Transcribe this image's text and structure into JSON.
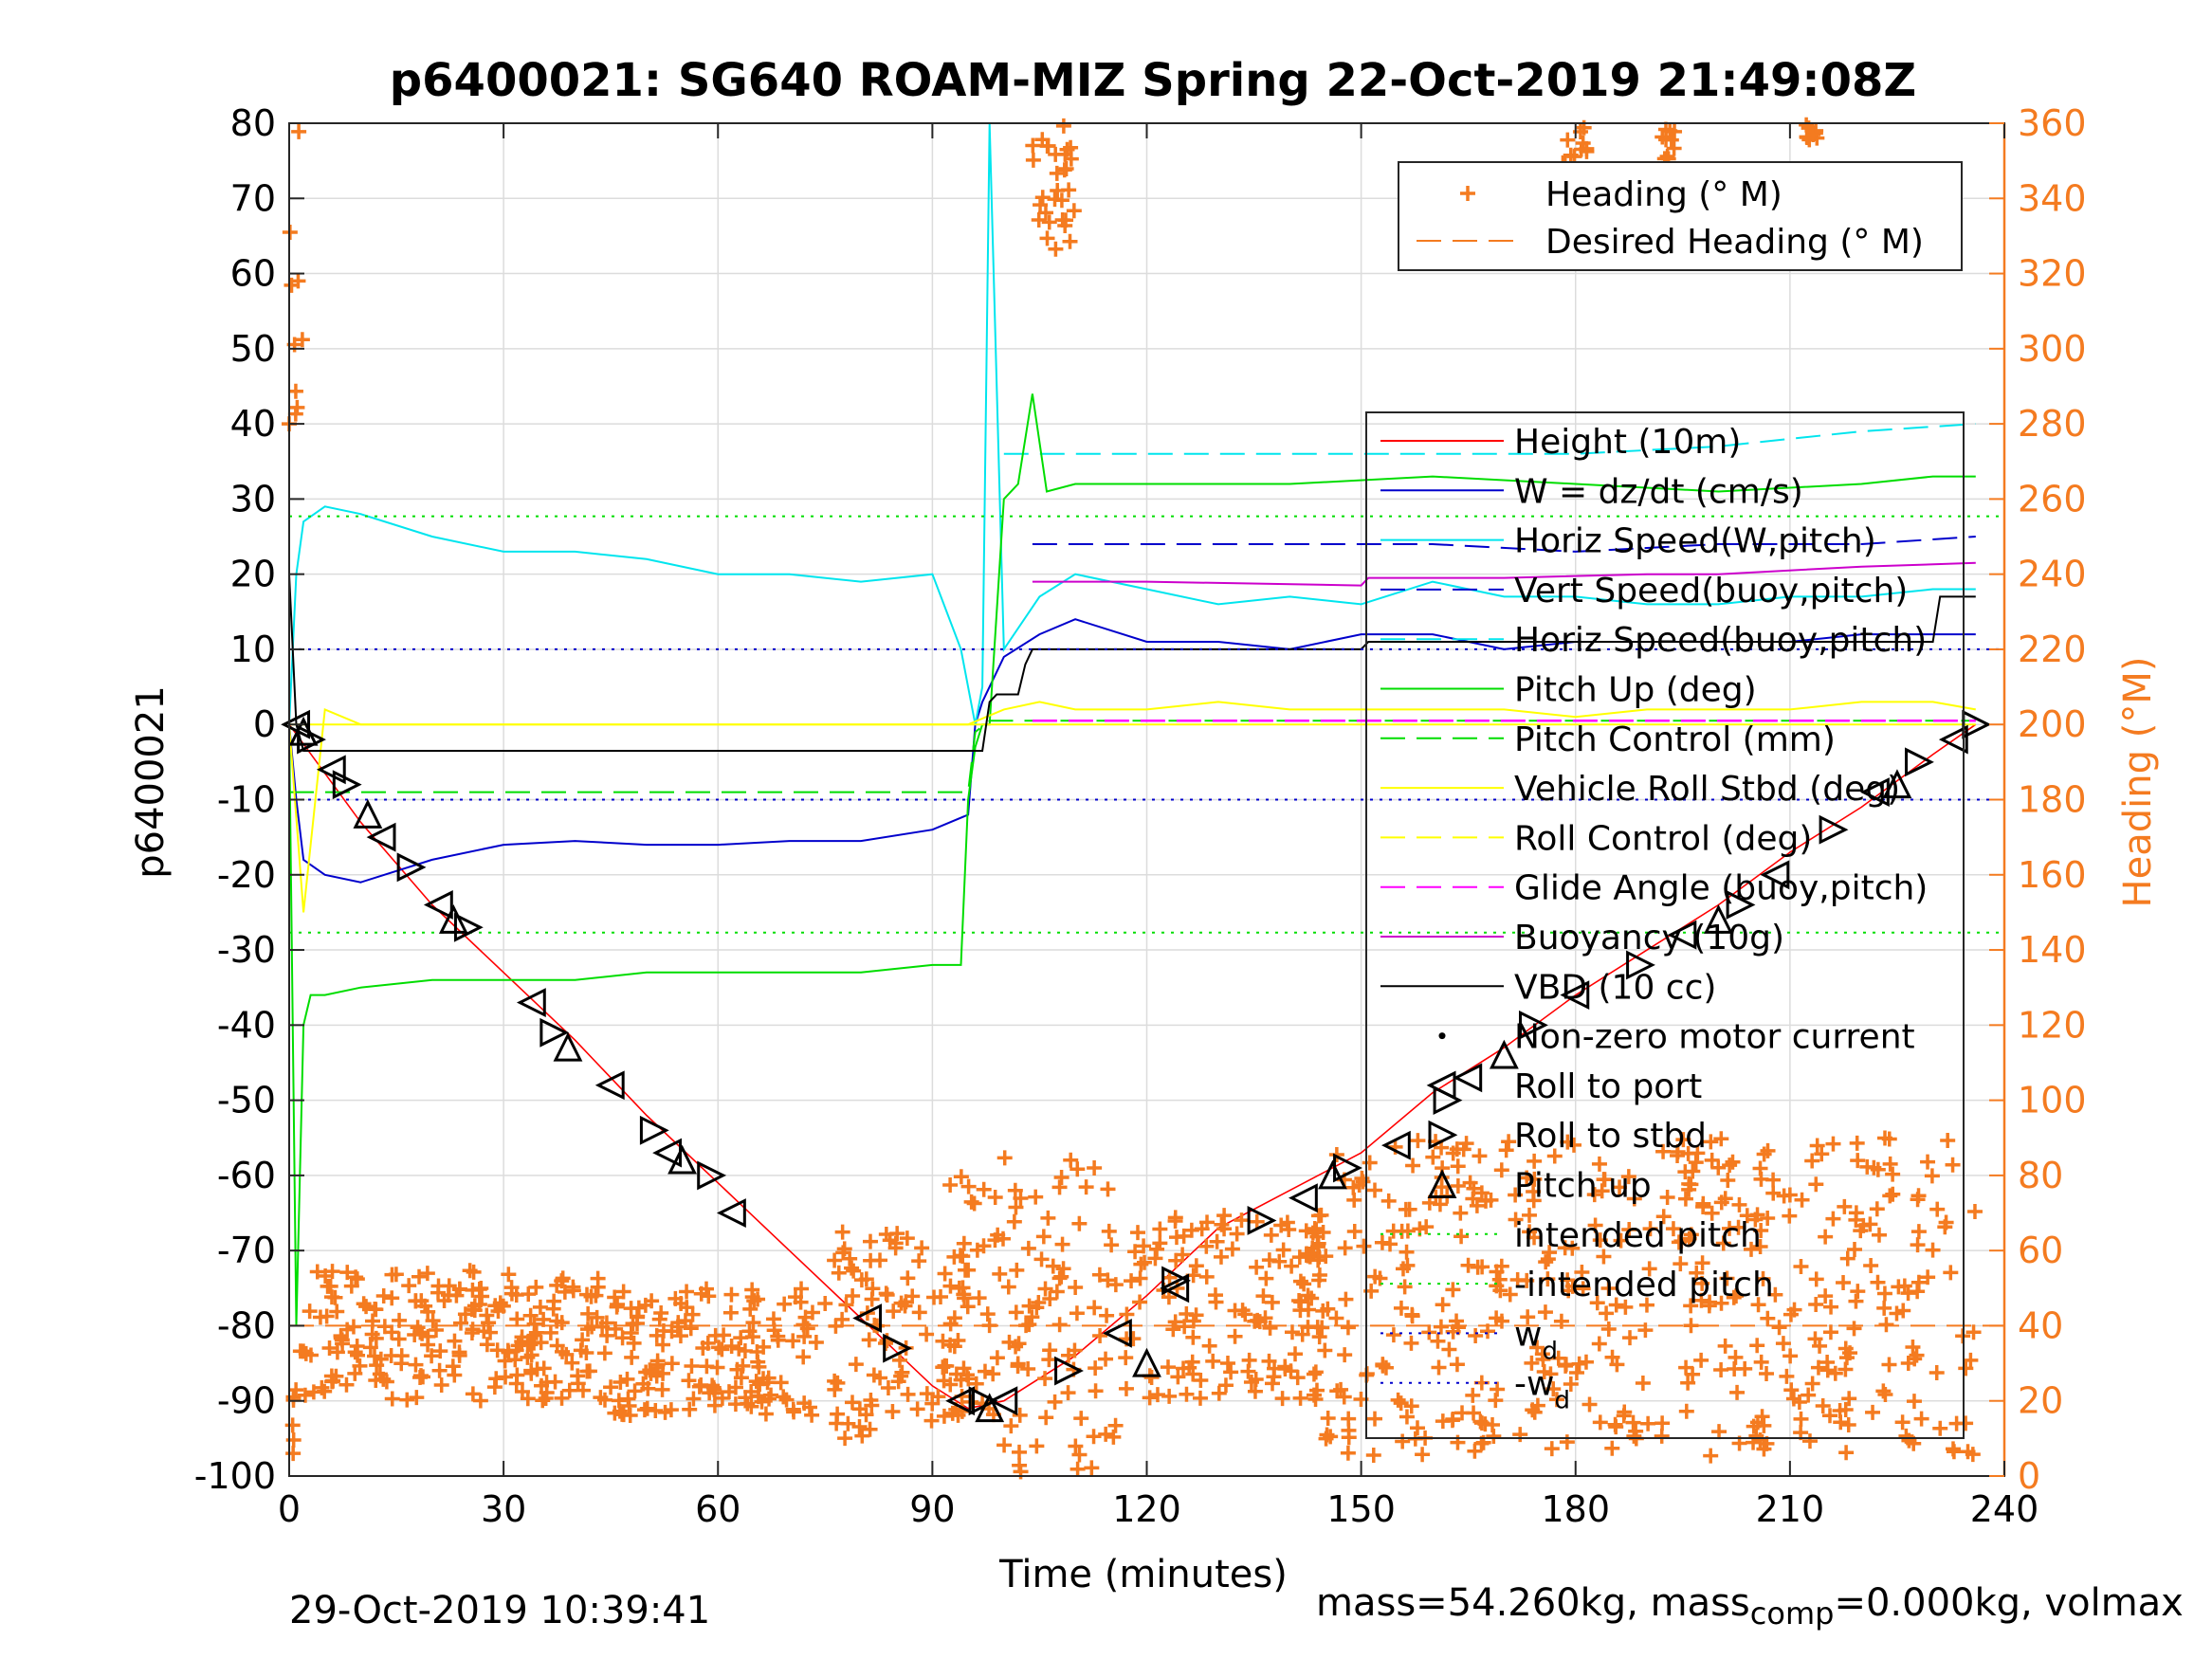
{
  "chart_data": {
    "type": "line",
    "title": "p6400021: SG640 ROAM-MIZ Spring 22-Oct-2019 21:49:08Z",
    "xlabel": "Time (minutes)",
    "ylabel_left": "p6400021",
    "ylabel_right": "Heading (°M)",
    "xlim": [
      0,
      240
    ],
    "ylim_left": [
      -100,
      80
    ],
    "ylim_right": [
      0,
      360
    ],
    "xticks": [
      0,
      30,
      60,
      90,
      120,
      150,
      180,
      210,
      240
    ],
    "xtick_labels": [
      "0",
      "30",
      "60",
      "90",
      "120",
      "150",
      "180",
      "210",
      "240"
    ],
    "yticks_left": [
      -100,
      -90,
      -80,
      -70,
      -60,
      -50,
      -40,
      -30,
      -20,
      -10,
      0,
      10,
      20,
      30,
      40,
      50,
      60,
      70,
      80
    ],
    "ytick_labels_left": [
      "-100",
      "-90",
      "-80",
      "-70",
      "-60",
      "-50",
      "-40",
      "-30",
      "-20",
      "-10",
      "0",
      "10",
      "20",
      "30",
      "40",
      "50",
      "60",
      "70",
      "80"
    ],
    "yticks_right": [
      0,
      20,
      40,
      60,
      80,
      100,
      120,
      140,
      160,
      180,
      200,
      220,
      240,
      260,
      280,
      300,
      320,
      340,
      360
    ],
    "ytick_labels_right": [
      "0",
      "20",
      "40",
      "60",
      "80",
      "100",
      "120",
      "140",
      "160",
      "180",
      "200",
      "220",
      "240",
      "260",
      "280",
      "300",
      "320",
      "340",
      "360"
    ],
    "grid": true,
    "legend_top": [
      {
        "label": "Heading (° M)",
        "color": "#f47b20",
        "style": "marker-plus"
      },
      {
        "label": "Desired Heading (° M)",
        "color": "#f47b20",
        "style": "dashed"
      }
    ],
    "legend_main": [
      {
        "label": "Height (10m)",
        "color": "#ff0000",
        "style": "solid"
      },
      {
        "label": "W = dz/dt (cm/s)",
        "color": "#0000cc",
        "style": "solid"
      },
      {
        "label": "Horiz Speed(W,pitch)",
        "color": "#00e5ee",
        "style": "solid"
      },
      {
        "label": "Vert Speed(buoy,pitch)",
        "color": "#0000cc",
        "style": "dashed"
      },
      {
        "label": "Horiz Speed(buoy,pitch)",
        "color": "#00e5ee",
        "style": "dashed"
      },
      {
        "label": "Pitch Up (deg)",
        "color": "#00dd00",
        "style": "solid"
      },
      {
        "label": "Pitch Control (mm)",
        "color": "#00dd00",
        "style": "dashed"
      },
      {
        "label": "Vehicle Roll Stbd (deg)",
        "color": "#ffff00",
        "style": "solid"
      },
      {
        "label": "Roll Control (deg)",
        "color": "#ffff00",
        "style": "dashed"
      },
      {
        "label": "Glide Angle (buoy,pitch)",
        "color": "#ff00ff",
        "style": "dashed"
      },
      {
        "label": "Buoyancy (10g)",
        "color": "#cc00cc",
        "style": "solid"
      },
      {
        "label": "VBD (10 cc)",
        "color": "#000000",
        "style": "solid"
      },
      {
        "label": "Non-zero motor current",
        "color": "#000000",
        "style": "dot"
      },
      {
        "label": "Roll to port",
        "color": "#000000",
        "style": "tri-left"
      },
      {
        "label": "Roll to stbd",
        "color": "#000000",
        "style": "tri-right"
      },
      {
        "label": "Pitch up",
        "color": "#000000",
        "style": "tri-up"
      },
      {
        "label": "intended pitch",
        "color": "#00dd00",
        "style": "dotted"
      },
      {
        "label": "-intended pitch",
        "color": "#00dd00",
        "style": "dotted"
      },
      {
        "label": "w_d",
        "color": "#0000cc",
        "style": "dotted"
      },
      {
        "label": "-w_d",
        "color": "#0000cc",
        "style": "dotted"
      }
    ],
    "series": [
      {
        "name": "Height (10m)",
        "axis": "left",
        "color": "#ff0000",
        "x": [
          0,
          10,
          20,
          30,
          40,
          50,
          60,
          70,
          80,
          90,
          95,
          100,
          110,
          120,
          130,
          140,
          150,
          160,
          170,
          180,
          190,
          200,
          210,
          220,
          230,
          236
        ],
        "y": [
          0,
          -13,
          -24,
          -33,
          -42,
          -52,
          -61,
          -70,
          -79,
          -88,
          -91,
          -90,
          -84,
          -76,
          -67,
          -62,
          -57,
          -49,
          -43,
          -36,
          -30,
          -24,
          -17,
          -11,
          -4,
          0
        ]
      },
      {
        "name": "W = dz/dt (cm/s)",
        "axis": "left",
        "color": "#0000cc",
        "x": [
          0,
          1,
          2,
          5,
          10,
          20,
          30,
          40,
          50,
          60,
          70,
          80,
          90,
          95,
          96,
          97,
          100,
          105,
          110,
          120,
          130,
          140,
          150,
          160,
          170,
          180,
          190,
          200,
          210,
          220,
          230,
          236
        ],
        "y": [
          0,
          -10,
          -18,
          -20,
          -21,
          -18,
          -16,
          -15.5,
          -16,
          -16,
          -15.5,
          -15.5,
          -14,
          -12,
          0,
          3,
          9,
          12,
          14,
          11,
          11,
          10,
          12,
          12,
          10,
          11,
          11,
          11,
          11,
          12,
          12,
          12
        ]
      },
      {
        "name": "Horiz Speed(W,pitch)",
        "axis": "left",
        "color": "#00e5ee",
        "x": [
          0,
          1,
          2,
          5,
          10,
          20,
          30,
          40,
          50,
          60,
          70,
          80,
          90,
          94,
          96,
          97,
          98,
          100,
          105,
          110,
          120,
          130,
          140,
          150,
          160,
          170,
          180,
          190,
          200,
          210,
          220,
          230,
          236
        ],
        "y": [
          0,
          20,
          27,
          29,
          28,
          25,
          23,
          23,
          22,
          20,
          20,
          19,
          20,
          10,
          0,
          5,
          80,
          10,
          17,
          20,
          18,
          16,
          17,
          16,
          19,
          17,
          17,
          16,
          16,
          17,
          17,
          18,
          18
        ]
      },
      {
        "name": "Vert Speed(buoy,pitch)",
        "axis": "left",
        "color": "#0000cc",
        "x": [
          104,
          120,
          140,
          160,
          180,
          200,
          220,
          236
        ],
        "y": [
          24,
          24,
          24,
          24,
          23,
          24,
          24,
          25
        ]
      },
      {
        "name": "Horiz Speed(buoy,pitch)",
        "axis": "left",
        "color": "#00e5ee",
        "x": [
          100,
          120,
          140,
          160,
          180,
          200,
          220,
          236
        ],
        "y": [
          36,
          36,
          36,
          36,
          36,
          37,
          39,
          40
        ]
      },
      {
        "name": "Pitch Up (deg)",
        "axis": "left",
        "color": "#00dd00",
        "x": [
          0,
          1,
          2,
          3,
          5,
          10,
          20,
          30,
          40,
          50,
          60,
          70,
          80,
          90,
          94,
          95,
          96,
          97,
          98,
          100,
          102,
          104,
          106,
          110,
          120,
          140,
          160,
          180,
          200,
          220,
          230,
          236
        ],
        "y": [
          0,
          -80,
          -40,
          -36,
          -36,
          -35,
          -34,
          -34,
          -34,
          -33,
          -33,
          -33,
          -33,
          -32,
          -32,
          -10,
          -3,
          0,
          0,
          30,
          32,
          44,
          31,
          32,
          32,
          32,
          33,
          32,
          31,
          32,
          33,
          33
        ]
      },
      {
        "name": "Pitch Control (mm)",
        "axis": "left",
        "color": "#00dd00",
        "x": [
          0,
          95,
          96,
          98,
          236
        ],
        "y": [
          -9,
          -9,
          -1,
          0.5,
          0.5
        ]
      },
      {
        "name": "Vehicle Roll Stbd (deg)",
        "axis": "left",
        "color": "#ffff00",
        "x": [
          0,
          2,
          5,
          10,
          20,
          30,
          40,
          50,
          60,
          70,
          80,
          90,
          95,
          100,
          105,
          110,
          120,
          130,
          140,
          150,
          160,
          170,
          180,
          190,
          200,
          210,
          220,
          230,
          236
        ],
        "y": [
          0,
          -25,
          2,
          0,
          0,
          0,
          0,
          0,
          0,
          0,
          0,
          0,
          0,
          2,
          3,
          2,
          2,
          3,
          2,
          2,
          2,
          2,
          1,
          2,
          2,
          2,
          3,
          3,
          2
        ]
      },
      {
        "name": "Roll Control (deg)",
        "axis": "left",
        "color": "#ffff00",
        "x": [
          0,
          236
        ],
        "y": [
          0,
          0
        ]
      },
      {
        "name": "Glide Angle (buoy,pitch)",
        "axis": "left",
        "color": "#ff00ff",
        "x": [
          104,
          236
        ],
        "y": [
          0.5,
          0.5
        ]
      },
      {
        "name": "Buoyancy (10g)",
        "axis": "left",
        "color": "#cc00cc",
        "x": [
          104,
          120,
          150,
          151,
          170,
          190,
          200,
          220,
          236
        ],
        "y": [
          19,
          19,
          18.5,
          19.5,
          19.5,
          20,
          20,
          21,
          21.5
        ]
      },
      {
        "name": "VBD (10 cc)",
        "axis": "left",
        "color": "#000000",
        "x": [
          0,
          1,
          2,
          50,
          97,
          98,
          99,
          102,
          103,
          104,
          106,
          150,
          151,
          200,
          230,
          231,
          236
        ],
        "y": [
          20,
          0,
          -3.5,
          -3.5,
          -3.5,
          3,
          4,
          4,
          8,
          10,
          10,
          10,
          11,
          11,
          11,
          17,
          17
        ]
      },
      {
        "name": "intended pitch",
        "axis": "left",
        "color": "#00dd00",
        "x": [
          0,
          240
        ],
        "y": [
          27.7,
          27.7
        ]
      },
      {
        "name": "-intended pitch",
        "axis": "left",
        "color": "#00dd00",
        "x": [
          0,
          240
        ],
        "y": [
          -27.7,
          -27.7
        ]
      },
      {
        "name": "w_d",
        "axis": "left",
        "color": "#0000cc",
        "x": [
          0,
          240
        ],
        "y": [
          10,
          10
        ]
      },
      {
        "name": "-w_d",
        "axis": "left",
        "color": "#0000cc",
        "x": [
          0,
          240
        ],
        "y": [
          -10,
          -10
        ]
      },
      {
        "name": "Desired Heading (° M)",
        "axis": "right",
        "color": "#f47b20",
        "x": [
          0,
          240
        ],
        "y": [
          40,
          40
        ]
      }
    ],
    "heading_clusters": [
      {
        "x": [
          0,
          2
        ],
        "y": [
          280,
          360
        ]
      },
      {
        "x": [
          0,
          1
        ],
        "y": [
          0,
          30
        ]
      },
      {
        "x": [
          1,
          45
        ],
        "y": [
          20,
          55
        ]
      },
      {
        "x": [
          45,
          75
        ],
        "y": [
          15,
          50
        ]
      },
      {
        "x": [
          76,
          95
        ],
        "y": [
          10,
          65
        ]
      },
      {
        "x": [
          92,
          100
        ],
        "y": [
          15,
          80
        ]
      },
      {
        "x": [
          100,
          116
        ],
        "y": [
          0,
          85
        ]
      },
      {
        "x": [
          104,
          110
        ],
        "y": [
          325,
          360
        ]
      },
      {
        "x": [
          117,
          145
        ],
        "y": [
          20,
          70
        ]
      },
      {
        "x": [
          143,
          160
        ],
        "y": [
          5,
          90
        ]
      },
      {
        "x": [
          160,
          236
        ],
        "y": [
          5,
          90
        ]
      },
      {
        "x": [
          178,
          182
        ],
        "y": [
          340,
          360
        ]
      },
      {
        "x": [
          192,
          194
        ],
        "y": [
          350,
          360
        ]
      },
      {
        "x": [
          212,
          214
        ],
        "y": [
          355,
          360
        ]
      }
    ],
    "markers": {
      "tri_left": [
        [
          1,
          0
        ],
        [
          6,
          -6
        ],
        [
          13,
          -15
        ],
        [
          21,
          -24
        ],
        [
          34,
          -37
        ],
        [
          45,
          -48
        ],
        [
          53,
          -57
        ],
        [
          62,
          -65
        ],
        [
          81,
          -79
        ],
        [
          94,
          -90
        ],
        [
          100,
          -90
        ],
        [
          116,
          -81
        ],
        [
          124,
          -75
        ],
        [
          142,
          -63
        ],
        [
          155,
          -56
        ],
        [
          165,
          -47
        ],
        [
          180,
          -36
        ],
        [
          195,
          -28
        ],
        [
          208,
          -20
        ],
        [
          222,
          -9
        ],
        [
          233,
          -2
        ]
      ],
      "tri_right": [
        [
          3,
          -2
        ],
        [
          8,
          -8
        ],
        [
          17,
          -19
        ],
        [
          25,
          -27
        ],
        [
          37,
          -41
        ],
        [
          51,
          -54
        ],
        [
          59,
          -60
        ],
        [
          85,
          -83
        ],
        [
          97,
          -90
        ],
        [
          109,
          -86
        ],
        [
          124,
          -74
        ],
        [
          136,
          -66
        ],
        [
          148,
          -59
        ],
        [
          162,
          -50
        ],
        [
          174,
          -40
        ],
        [
          189,
          -32
        ],
        [
          203,
          -24
        ],
        [
          216,
          -14
        ],
        [
          228,
          -5
        ],
        [
          236,
          0
        ]
      ],
      "tri_up": [
        [
          2,
          -1
        ],
        [
          11,
          -12
        ],
        [
          23,
          -26
        ],
        [
          39,
          -43
        ],
        [
          55,
          -58
        ],
        [
          98,
          -91
        ],
        [
          120,
          -85
        ],
        [
          146,
          -60
        ],
        [
          170,
          -44
        ],
        [
          200,
          -26
        ],
        [
          225,
          -8
        ]
      ]
    }
  },
  "footer": {
    "timestamp": "29-Oct-2019 10:39:41",
    "mass_prefix": "mass=54.260kg, mass",
    "mass_sub": "comp",
    "mass_suffix": "=0.000kg, volmax"
  }
}
